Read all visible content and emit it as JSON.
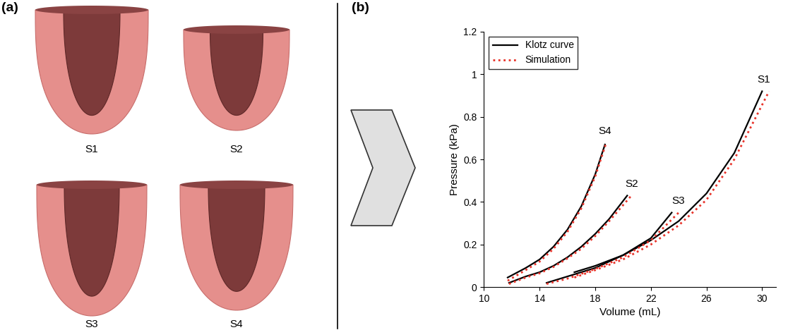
{
  "panels": {
    "a": {
      "label": "(a)",
      "shapes": [
        "S1",
        "S2",
        "S3",
        "S4"
      ]
    },
    "b": {
      "label": "(b)"
    }
  },
  "chart_data": {
    "type": "line",
    "x_label": "Volume (mL)",
    "y_label": "Pressure (kPa)",
    "xlim": [
      10,
      31
    ],
    "xticks": [
      10,
      14,
      18,
      22,
      26,
      30
    ],
    "ylim": [
      0,
      1.2
    ],
    "yticks": [
      0,
      0.2,
      0.4,
      0.6,
      0.8,
      1,
      1.2
    ],
    "legend": "upper left",
    "grid": false,
    "series": [
      {
        "name": "Klotz curve",
        "color": "#000000",
        "line_style": "solid",
        "curves": [
          {
            "label": "S4",
            "x": [
              11.7,
              13,
              14,
              15,
              16,
              17,
              18,
              18.7
            ],
            "values": [
              0.045,
              0.09,
              0.13,
              0.19,
              0.27,
              0.38,
              0.53,
              0.67
            ]
          },
          {
            "label": "S2",
            "x": [
              11.8,
              13,
              14,
              15,
              16,
              17,
              18,
              19,
              20.3
            ],
            "values": [
              0.02,
              0.05,
              0.07,
              0.1,
              0.14,
              0.19,
              0.25,
              0.32,
              0.43
            ]
          },
          {
            "label": "S3",
            "x": [
              14.5,
              16,
              18,
              20,
              22,
              23.5
            ],
            "values": [
              0.02,
              0.05,
              0.09,
              0.15,
              0.23,
              0.35
            ]
          },
          {
            "label": "S1",
            "x": [
              16.5,
              18,
              20,
              22,
              24,
              26,
              28,
              30
            ],
            "values": [
              0.07,
              0.1,
              0.15,
              0.22,
              0.31,
              0.44,
              0.63,
              0.92
            ]
          }
        ]
      },
      {
        "name": "Simulation",
        "color": "#e8332a",
        "line_style": "dotted",
        "curves": [
          {
            "label": "S4",
            "x": [
              11.7,
              13,
              14,
              15,
              16,
              17,
              18,
              18.8
            ],
            "values": [
              0.03,
              0.08,
              0.12,
              0.18,
              0.26,
              0.37,
              0.52,
              0.68
            ]
          },
          {
            "label": "S2",
            "x": [
              11.8,
              13,
              14,
              15,
              16,
              17,
              18,
              19,
              20.6
            ],
            "values": [
              0.015,
              0.045,
              0.065,
              0.095,
              0.135,
              0.18,
              0.24,
              0.31,
              0.43
            ]
          },
          {
            "label": "S3",
            "x": [
              14.5,
              16,
              18,
              20,
              22,
              24
            ],
            "values": [
              0.015,
              0.04,
              0.085,
              0.14,
              0.22,
              0.35
            ]
          },
          {
            "label": "S1",
            "x": [
              16.5,
              18,
              20,
              22,
              24,
              26,
              28,
              30.5
            ],
            "values": [
              0.045,
              0.08,
              0.13,
              0.2,
              0.29,
              0.41,
              0.6,
              0.92
            ]
          }
        ]
      }
    ],
    "annotations": [
      {
        "text": "S4",
        "x": 18.7,
        "y": 0.71
      },
      {
        "text": "S2",
        "x": 20.6,
        "y": 0.46
      },
      {
        "text": "S3",
        "x": 24.0,
        "y": 0.38
      },
      {
        "text": "S1",
        "x": 30.1,
        "y": 0.95
      }
    ]
  }
}
